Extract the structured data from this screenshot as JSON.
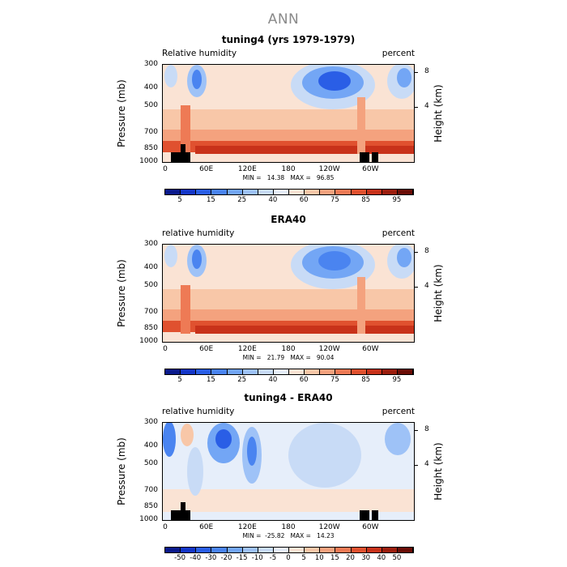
{
  "page_title": "ANN",
  "chart_data": [
    {
      "type": "heatmap",
      "title": "tuning4 (yrs 1979-1979)",
      "var_label": "Relative humidity",
      "units": "percent",
      "ylabel": "Pressure (mb)",
      "ylabel_right": "Height (km)",
      "pressure_ticks": [
        "300",
        "400",
        "500",
        "700",
        "850",
        "1000"
      ],
      "height_ticks": [
        "8",
        "4"
      ],
      "x_ticks": [
        "0",
        "60E",
        "120E",
        "180",
        "120W",
        "60W"
      ],
      "min_max": "MIN =   14.38   MAX =   96.85",
      "colorbar_labels": [
        "5",
        "15",
        "25",
        "40",
        "60",
        "75",
        "85",
        "95"
      ],
      "colorbar_colors": [
        "#0a1a8c",
        "#1436c8",
        "#2a5ee6",
        "#4a84f0",
        "#73a6f5",
        "#9ec2f7",
        "#c8dbf6",
        "#e6eefa",
        "#fae3d4",
        "#f8c7a8",
        "#f4a27e",
        "#ee7a55",
        "#e0512f",
        "#c8321a",
        "#9c1e0e",
        "#6b0d06"
      ],
      "ylim_pressure_mb": [
        1000,
        300
      ],
      "xlim_lon": [
        0,
        360
      ]
    },
    {
      "type": "heatmap",
      "title": "ERA40",
      "var_label": "relative humidity",
      "units": "percent",
      "ylabel": "Pressure (mb)",
      "ylabel_right": "Height (km)",
      "pressure_ticks": [
        "300",
        "400",
        "500",
        "700",
        "850",
        "1000"
      ],
      "height_ticks": [
        "8",
        "4"
      ],
      "x_ticks": [
        "0",
        "60E",
        "120E",
        "180",
        "120W",
        "60W"
      ],
      "min_max": "MIN =   21.79   MAX =   90.04",
      "colorbar_labels": [
        "5",
        "15",
        "25",
        "40",
        "60",
        "75",
        "85",
        "95"
      ],
      "colorbar_colors": [
        "#0a1a8c",
        "#1436c8",
        "#2a5ee6",
        "#4a84f0",
        "#73a6f5",
        "#9ec2f7",
        "#c8dbf6",
        "#e6eefa",
        "#fae3d4",
        "#f8c7a8",
        "#f4a27e",
        "#ee7a55",
        "#e0512f",
        "#c8321a",
        "#9c1e0e",
        "#6b0d06"
      ],
      "ylim_pressure_mb": [
        1000,
        300
      ],
      "xlim_lon": [
        0,
        360
      ]
    },
    {
      "type": "heatmap",
      "title": "tuning4 - ERA40",
      "var_label": "relative humidity",
      "units": "percent",
      "ylabel": "Pressure (mb)",
      "ylabel_right": "Height (km)",
      "pressure_ticks": [
        "300",
        "400",
        "500",
        "700",
        "850",
        "1000"
      ],
      "height_ticks": [
        "8",
        "4"
      ],
      "x_ticks": [
        "0",
        "60E",
        "120E",
        "180",
        "120W",
        "60W"
      ],
      "min_max": "MIN =  -25.82   MAX =   14.23",
      "colorbar_labels": [
        "-50",
        "-40",
        "-30",
        "-20",
        "-15",
        "-10",
        "-5",
        "0",
        "5",
        "10",
        "15",
        "20",
        "30",
        "40",
        "50"
      ],
      "colorbar_colors": [
        "#0a1a8c",
        "#1436c8",
        "#2a5ee6",
        "#4a84f0",
        "#73a6f5",
        "#9ec2f7",
        "#c8dbf6",
        "#e6eefa",
        "#fae3d4",
        "#f8c7a8",
        "#f4a27e",
        "#ee7a55",
        "#e0512f",
        "#c8321a",
        "#9c1e0e",
        "#6b0d06"
      ],
      "ylim_pressure_mb": [
        1000,
        300
      ],
      "xlim_lon": [
        0,
        360
      ]
    }
  ]
}
